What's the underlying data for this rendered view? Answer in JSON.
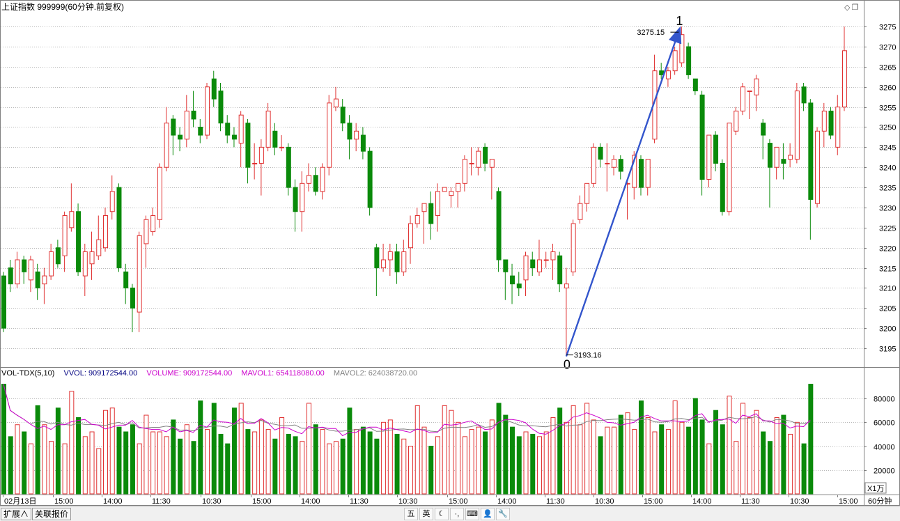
{
  "header": {
    "title": "上证指数 999999(60分钟.前复权)",
    "corner_icons": [
      "diamond-icon",
      "restore-window-icon"
    ]
  },
  "volume_legend": {
    "name": "VOL-TDX(5,10)",
    "vvol": "VVOL: 909172544.00",
    "volume": "VOLUME: 909172544.00",
    "mavol1": "MAVOL1: 654118080.00",
    "mavol2": "MAVOL2: 624038720.00",
    "colors": {
      "vvol": "#000080",
      "volume": "#cc00cc",
      "mavol1": "#cc00cc",
      "mavol2": "#808080"
    }
  },
  "annotations": {
    "wave_start_label": "0",
    "wave_end_label": "1",
    "low_price": "3193.16",
    "high_price": "3275.15",
    "arrow_color": "#3355cc"
  },
  "colors": {
    "up": "#e03030",
    "down": "#0a8a0a",
    "grid": "#b8b8b8",
    "axis": "#808080"
  },
  "chart_data": [
    {
      "type": "candlestick",
      "title": "上证指数 999999(60分钟.前复权)",
      "y_ticks": [
        3195,
        3200,
        3205,
        3210,
        3215,
        3220,
        3225,
        3230,
        3235,
        3240,
        3245,
        3250,
        3255,
        3260,
        3265,
        3270,
        3275
      ],
      "ylim": [
        3190.5,
        3277.8
      ],
      "grid": true,
      "x_tick_labels": [
        "02月13日",
        "15:00",
        "14:00",
        "11:30",
        "10:30",
        "15:00",
        "14:00",
        "11:30",
        "10:30",
        "15:00",
        "14:00",
        "11:30",
        "10:30",
        "15:00",
        "14:00",
        "11:30",
        "10:30",
        "15:00"
      ],
      "candles": [
        [
          3213,
          3200,
          3214,
          3199
        ],
        [
          3215,
          3211,
          3217,
          3209
        ],
        [
          3211,
          3217,
          3219,
          3210
        ],
        [
          3217,
          3214,
          3218,
          3211
        ],
        [
          3212,
          3217,
          3218,
          3209
        ],
        [
          3214,
          3210,
          3216,
          3207
        ],
        [
          3211,
          3213,
          3215,
          3206
        ],
        [
          3213,
          3219,
          3221,
          3212
        ],
        [
          3220,
          3216,
          3222,
          3215
        ],
        [
          3218,
          3228,
          3229,
          3214
        ],
        [
          3225,
          3229,
          3236,
          3224
        ],
        [
          3229,
          3214,
          3231,
          3213
        ],
        [
          3213,
          3219,
          3221,
          3208
        ],
        [
          3216,
          3219,
          3224,
          3212
        ],
        [
          3218,
          3222,
          3228,
          3217
        ],
        [
          3220,
          3228,
          3230,
          3219
        ],
        [
          3229,
          3234,
          3238,
          3227
        ],
        [
          3235,
          3215,
          3236,
          3214
        ],
        [
          3214,
          3210,
          3216,
          3206
        ],
        [
          3210,
          3205,
          3211,
          3199
        ],
        [
          3204,
          3223,
          3224,
          3199
        ],
        [
          3221,
          3227,
          3228,
          3215
        ],
        [
          3224,
          3228,
          3230,
          3223
        ],
        [
          3227,
          3240,
          3241,
          3225
        ],
        [
          3240,
          3251,
          3255,
          3239
        ],
        [
          3252,
          3248,
          3253,
          3243
        ],
        [
          3248,
          3247,
          3250,
          3244
        ],
        [
          3247,
          3254,
          3258,
          3245
        ],
        [
          3254,
          3252,
          3259,
          3250
        ],
        [
          3250,
          3248,
          3252,
          3246
        ],
        [
          3248,
          3260,
          3261,
          3247
        ],
        [
          3262,
          3257,
          3264,
          3255
        ],
        [
          3259,
          3251,
          3261,
          3249
        ],
        [
          3251,
          3248,
          3253,
          3246
        ],
        [
          3248,
          3247,
          3250,
          3245
        ],
        [
          3246,
          3253,
          3254,
          3240
        ],
        [
          3251,
          3240,
          3252,
          3236
        ],
        [
          3241,
          3241,
          3246,
          3237
        ],
        [
          3241,
          3245,
          3247,
          3233
        ],
        [
          3245,
          3254,
          3256,
          3244
        ],
        [
          3249,
          3245,
          3251,
          3243
        ],
        [
          3245,
          3245,
          3248,
          3244
        ],
        [
          3245,
          3235,
          3246,
          3233
        ],
        [
          3235,
          3229,
          3237,
          3224
        ],
        [
          3229,
          3236,
          3239,
          3224
        ],
        [
          3236,
          3238,
          3241,
          3234
        ],
        [
          3238,
          3234,
          3240,
          3233
        ],
        [
          3234,
          3240,
          3241,
          3232
        ],
        [
          3240,
          3256,
          3258,
          3238
        ],
        [
          3255,
          3257,
          3260,
          3254
        ],
        [
          3255,
          3251,
          3257,
          3249
        ],
        [
          3251,
          3247,
          3253,
          3242
        ],
        [
          3247,
          3249,
          3251,
          3244
        ],
        [
          3248,
          3244,
          3250,
          3242
        ],
        [
          3244,
          3230,
          3245,
          3228
        ],
        [
          3220,
          3215,
          3221,
          3208
        ],
        [
          3215,
          3217,
          3221,
          3214
        ],
        [
          3217,
          3219,
          3221,
          3213
        ],
        [
          3219,
          3214,
          3221,
          3211
        ],
        [
          3214,
          3219,
          3222,
          3213
        ],
        [
          3220,
          3226,
          3228,
          3216
        ],
        [
          3226,
          3228,
          3230,
          3225
        ],
        [
          3229,
          3231,
          3231,
          3221
        ],
        [
          3231,
          3226,
          3234,
          3222
        ],
        [
          3228,
          3234,
          3236,
          3224
        ],
        [
          3234,
          3235,
          3235,
          3234
        ],
        [
          3233,
          3234,
          3235,
          3230
        ],
        [
          3234,
          3236,
          3236,
          3230
        ],
        [
          3236,
          3242,
          3243,
          3234
        ],
        [
          3241,
          3241,
          3245,
          3238
        ],
        [
          3240,
          3244,
          3245,
          3238
        ],
        [
          3245,
          3241,
          3246,
          3239
        ],
        [
          3240,
          3242,
          3242,
          3232
        ],
        [
          3234,
          3217,
          3235,
          3214
        ],
        [
          3217,
          3214,
          3215,
          3207
        ],
        [
          3213,
          3211,
          3216,
          3206
        ],
        [
          3211,
          3210,
          3214,
          3208
        ],
        [
          3212,
          3218,
          3219,
          3208
        ],
        [
          3217,
          3215,
          3219,
          3213
        ],
        [
          3214,
          3217,
          3222,
          3213
        ],
        [
          3217,
          3217,
          3219,
          3215
        ],
        [
          3217,
          3219,
          3221,
          3212
        ],
        [
          3218,
          3211,
          3219,
          3209
        ],
        [
          3210,
          3211,
          3215,
          3193
        ],
        [
          3214,
          3226,
          3227,
          3213
        ],
        [
          3227,
          3231,
          3233,
          3226
        ],
        [
          3231,
          3236,
          3236,
          3229
        ],
        [
          3236,
          3245,
          3246,
          3235
        ],
        [
          3245,
          3242,
          3246,
          3240
        ],
        [
          3241,
          3241,
          3246,
          3234
        ],
        [
          3240,
          3242,
          3243,
          3238
        ],
        [
          3242,
          3239,
          3243,
          3237
        ],
        [
          3236,
          3236,
          3237,
          3227
        ],
        [
          3235,
          3243,
          3244,
          3232
        ],
        [
          3242,
          3235,
          3243,
          3233
        ],
        [
          3235,
          3242,
          3242,
          3233
        ],
        [
          3247,
          3264,
          3268,
          3246
        ],
        [
          3264,
          3263,
          3266,
          3262
        ],
        [
          3262,
          3264,
          3265,
          3260
        ],
        [
          3264,
          3269,
          3270,
          3263
        ],
        [
          3266,
          3273,
          3275,
          3265
        ],
        [
          3270,
          3263,
          3271,
          3262
        ],
        [
          3262,
          3259,
          3262,
          3258
        ],
        [
          3258,
          3237,
          3259,
          3233
        ],
        [
          3237,
          3248,
          3248,
          3235
        ],
        [
          3248,
          3241,
          3249,
          3239
        ],
        [
          3241,
          3229,
          3242,
          3228
        ],
        [
          3229,
          3251,
          3251,
          3228
        ],
        [
          3249,
          3254,
          3255,
          3248
        ],
        [
          3254,
          3260,
          3261,
          3253
        ],
        [
          3259,
          3259,
          3259,
          3252
        ],
        [
          3258,
          3262,
          3263,
          3254
        ],
        [
          3251,
          3248,
          3252,
          3242
        ],
        [
          3246,
          3240,
          3247,
          3230
        ],
        [
          3240,
          3245,
          3245,
          3237
        ],
        [
          3242,
          3241,
          3246,
          3237
        ],
        [
          3242,
          3243,
          3246,
          3240
        ],
        [
          3242,
          3259,
          3261,
          3241
        ],
        [
          3260,
          3256,
          3261,
          3254
        ],
        [
          3256,
          3232,
          3257,
          3222
        ],
        [
          3231,
          3249,
          3250,
          3230
        ],
        [
          3249,
          3254,
          3256,
          3245
        ],
        [
          3254,
          3248,
          3255,
          3247
        ],
        [
          3245,
          3255,
          3258,
          3243
        ],
        [
          3255,
          3269,
          3275,
          3254
        ]
      ]
    },
    {
      "type": "bar",
      "title": "VOL-TDX(5,10)",
      "y_ticks": [
        20000,
        40000,
        60000,
        80000
      ],
      "ylim": [
        0,
        97000
      ],
      "grid": true,
      "axis_unit": "X1万",
      "period": "60分钟",
      "volumes": [
        92000,
        48000,
        58000,
        52000,
        42000,
        74000,
        58000,
        44000,
        72000,
        42000,
        86000,
        64000,
        48000,
        52000,
        38000,
        70000,
        72000,
        56000,
        52000,
        58000,
        42000,
        66000,
        52000,
        52000,
        48000,
        62000,
        46000,
        58000,
        44000,
        78000,
        54000,
        76000,
        50000,
        42000,
        72000,
        76000,
        54000,
        52000,
        62000,
        54000,
        46000,
        64000,
        50000,
        48000,
        44000,
        76000,
        58000,
        54000,
        42000,
        44000,
        46000,
        72000,
        54000,
        56000,
        52000,
        46000,
        60000,
        62000,
        50000,
        46000,
        40000,
        74000,
        56000,
        40000,
        48000,
        74000,
        70000,
        60000,
        48000,
        54000,
        56000,
        52000,
        62000,
        76000,
        66000,
        56000,
        48000,
        52000,
        50000,
        48000,
        52000,
        64000,
        72000,
        60000,
        74000,
        58000,
        76000,
        62000,
        48000,
        56000,
        56000,
        66000,
        68000,
        54000,
        78000,
        64000,
        52000,
        58000,
        54000,
        78000,
        60000,
        56000,
        80000,
        62000,
        42000,
        70000,
        58000,
        82000,
        44000,
        76000,
        64000,
        70000,
        52000,
        44000,
        64000,
        66000,
        50000,
        60000,
        42000,
        92000
      ],
      "series": [
        {
          "name": "MAVOL1",
          "value": 654118080.0
        },
        {
          "name": "MAVOL2",
          "value": 624038720.0
        }
      ]
    }
  ],
  "bottom_bar": {
    "tabs": [
      "扩展∧",
      "关联报价"
    ],
    "ime_icons": [
      "五",
      "英",
      "☾",
      "·,",
      "⌨",
      "👤",
      "🔧"
    ]
  }
}
